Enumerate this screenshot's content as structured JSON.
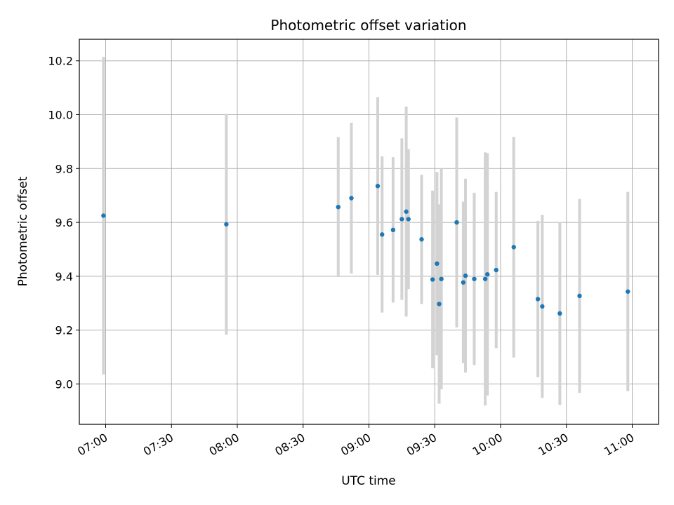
{
  "chart_data": {
    "type": "scatter",
    "title": "Photometric offset variation",
    "xlabel": "UTC time",
    "ylabel": "Photometric offset",
    "x_axis_type": "time",
    "xlim": [
      "06:48",
      "11:12"
    ],
    "ylim": [
      8.85,
      10.28
    ],
    "x_ticks": [
      "07:00",
      "07:30",
      "08:00",
      "08:30",
      "09:00",
      "09:30",
      "10:00",
      "10:30",
      "11:00"
    ],
    "y_ticks": [
      9.0,
      9.2,
      9.4,
      9.6,
      9.8,
      10.0,
      10.2
    ],
    "y_tick_labels": [
      "9.0",
      "9.2",
      "9.4",
      "9.6",
      "9.8",
      "10.0",
      "10.2"
    ],
    "grid": true,
    "point_color": "#1f77b4",
    "errorbar_color": "#d3d3d3",
    "points": [
      {
        "x": "06:59",
        "y": 9.625,
        "err": 0.59
      },
      {
        "x": "07:55",
        "y": 9.593,
        "err": 0.41
      },
      {
        "x": "08:46",
        "y": 9.657,
        "err": 0.26
      },
      {
        "x": "08:52",
        "y": 9.69,
        "err": 0.28
      },
      {
        "x": "09:04",
        "y": 9.735,
        "err": 0.33
      },
      {
        "x": "09:06",
        "y": 9.555,
        "err": 0.29
      },
      {
        "x": "09:11",
        "y": 9.572,
        "err": 0.27
      },
      {
        "x": "09:15",
        "y": 9.612,
        "err": 0.3
      },
      {
        "x": "09:17",
        "y": 9.64,
        "err": 0.39
      },
      {
        "x": "09:18",
        "y": 9.612,
        "err": 0.26
      },
      {
        "x": "09:24",
        "y": 9.537,
        "err": 0.24
      },
      {
        "x": "09:29",
        "y": 9.388,
        "err": 0.33
      },
      {
        "x": "09:31",
        "y": 9.447,
        "err": 0.34
      },
      {
        "x": "09:32",
        "y": 9.297,
        "err": 0.37
      },
      {
        "x": "09:33",
        "y": 9.39,
        "err": 0.41
      },
      {
        "x": "09:40",
        "y": 9.6,
        "err": 0.39
      },
      {
        "x": "09:43",
        "y": 9.377,
        "err": 0.3
      },
      {
        "x": "09:44",
        "y": 9.402,
        "err": 0.36
      },
      {
        "x": "09:48",
        "y": 9.39,
        "err": 0.32
      },
      {
        "x": "09:53",
        "y": 9.39,
        "err": 0.47
      },
      {
        "x": "09:54",
        "y": 9.407,
        "err": 0.45
      },
      {
        "x": "09:58",
        "y": 9.423,
        "err": 0.29
      },
      {
        "x": "10:06",
        "y": 9.508,
        "err": 0.41
      },
      {
        "x": "10:17",
        "y": 9.315,
        "err": 0.29
      },
      {
        "x": "10:19",
        "y": 9.288,
        "err": 0.34
      },
      {
        "x": "10:27",
        "y": 9.262,
        "err": 0.34
      },
      {
        "x": "10:36",
        "y": 9.327,
        "err": 0.36
      },
      {
        "x": "10:58",
        "y": 9.343,
        "err": 0.37
      }
    ]
  }
}
